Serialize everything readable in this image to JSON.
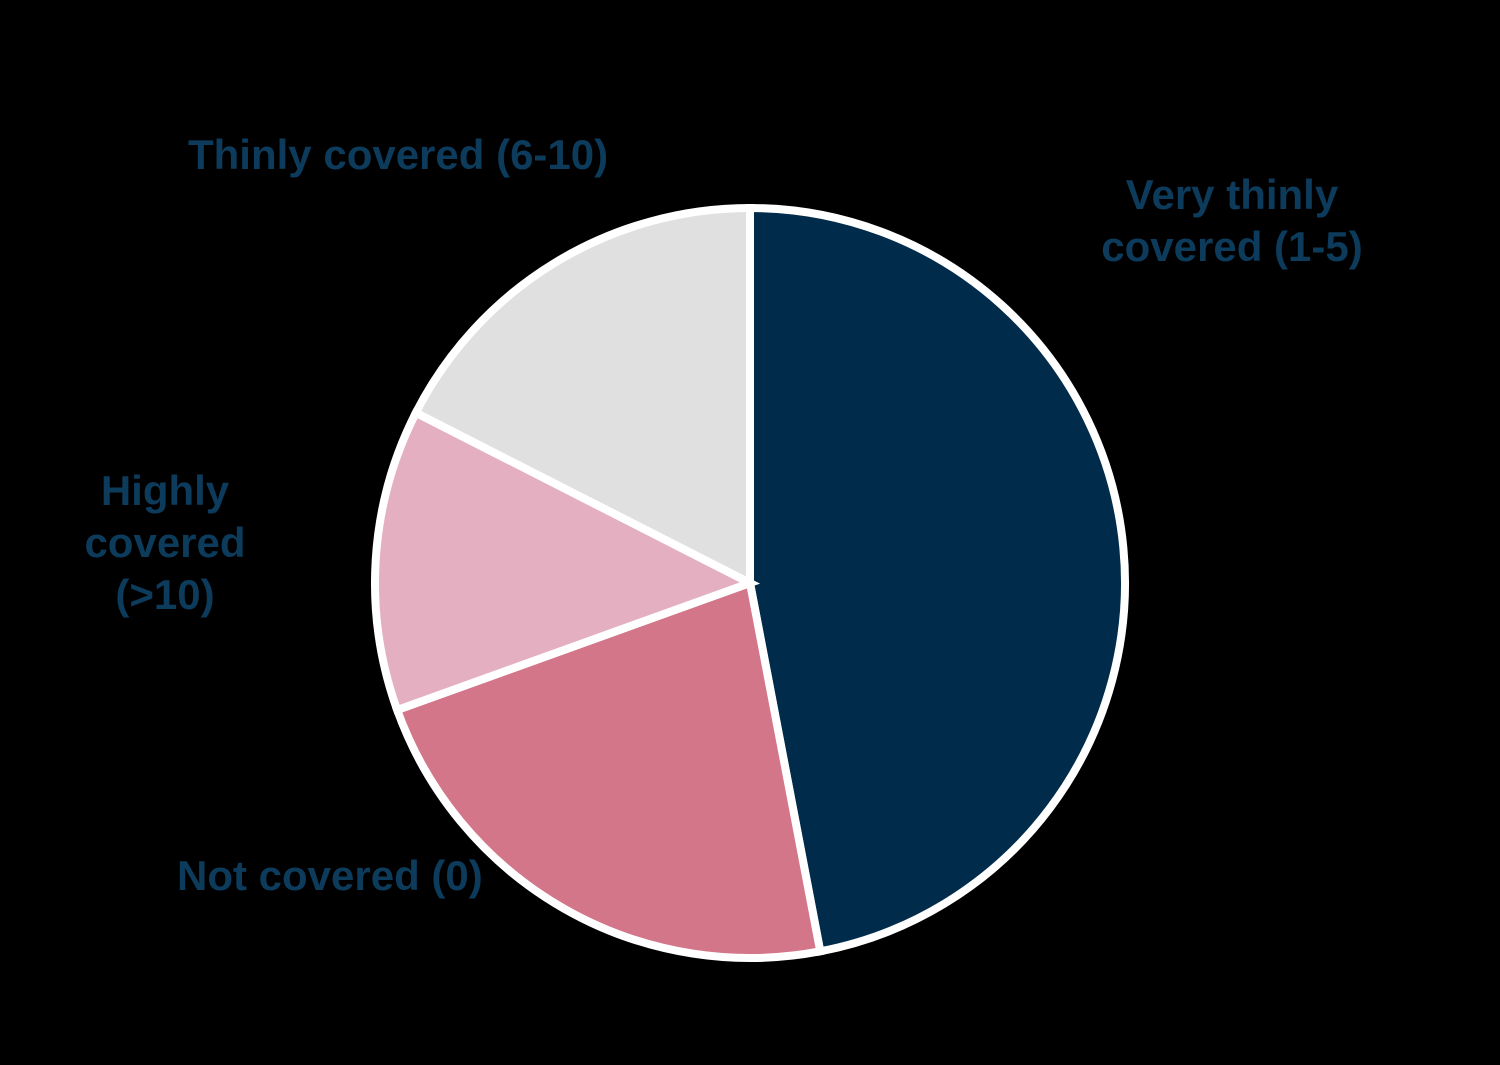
{
  "chart_data": {
    "type": "pie",
    "title": "",
    "categories": [
      "Very thinly covered (1-5)",
      "Not covered (0)",
      "Highly covered (>10)",
      "Thinly covered (6-10)"
    ],
    "values": [
      47,
      22.5,
      13,
      17.5
    ],
    "values_note": "percent share estimated from slice angles; no numeric data labels shown in chart",
    "colors": [
      "#002B4A",
      "#D3768A",
      "#E4AFC1",
      "#E0E0E0"
    ],
    "slice_keys": [
      "very-thinly-covered",
      "not-covered",
      "highly-covered",
      "thinly-covered"
    ],
    "start_angle_deg": 0,
    "direction": "clockwise",
    "legend": "none (direct labels around pie)",
    "background": "#000000",
    "divider_color": "#FFFFFF",
    "label_color": "#0D3B5C"
  },
  "labels": {
    "thinly": "Thinly covered (6-10)",
    "very_thinly_line1": "Very thinly",
    "very_thinly_line2": "covered (1-5)",
    "highly_line1": "Highly covered",
    "highly_line2": "(>10)",
    "not_covered": "Not covered (0)"
  }
}
